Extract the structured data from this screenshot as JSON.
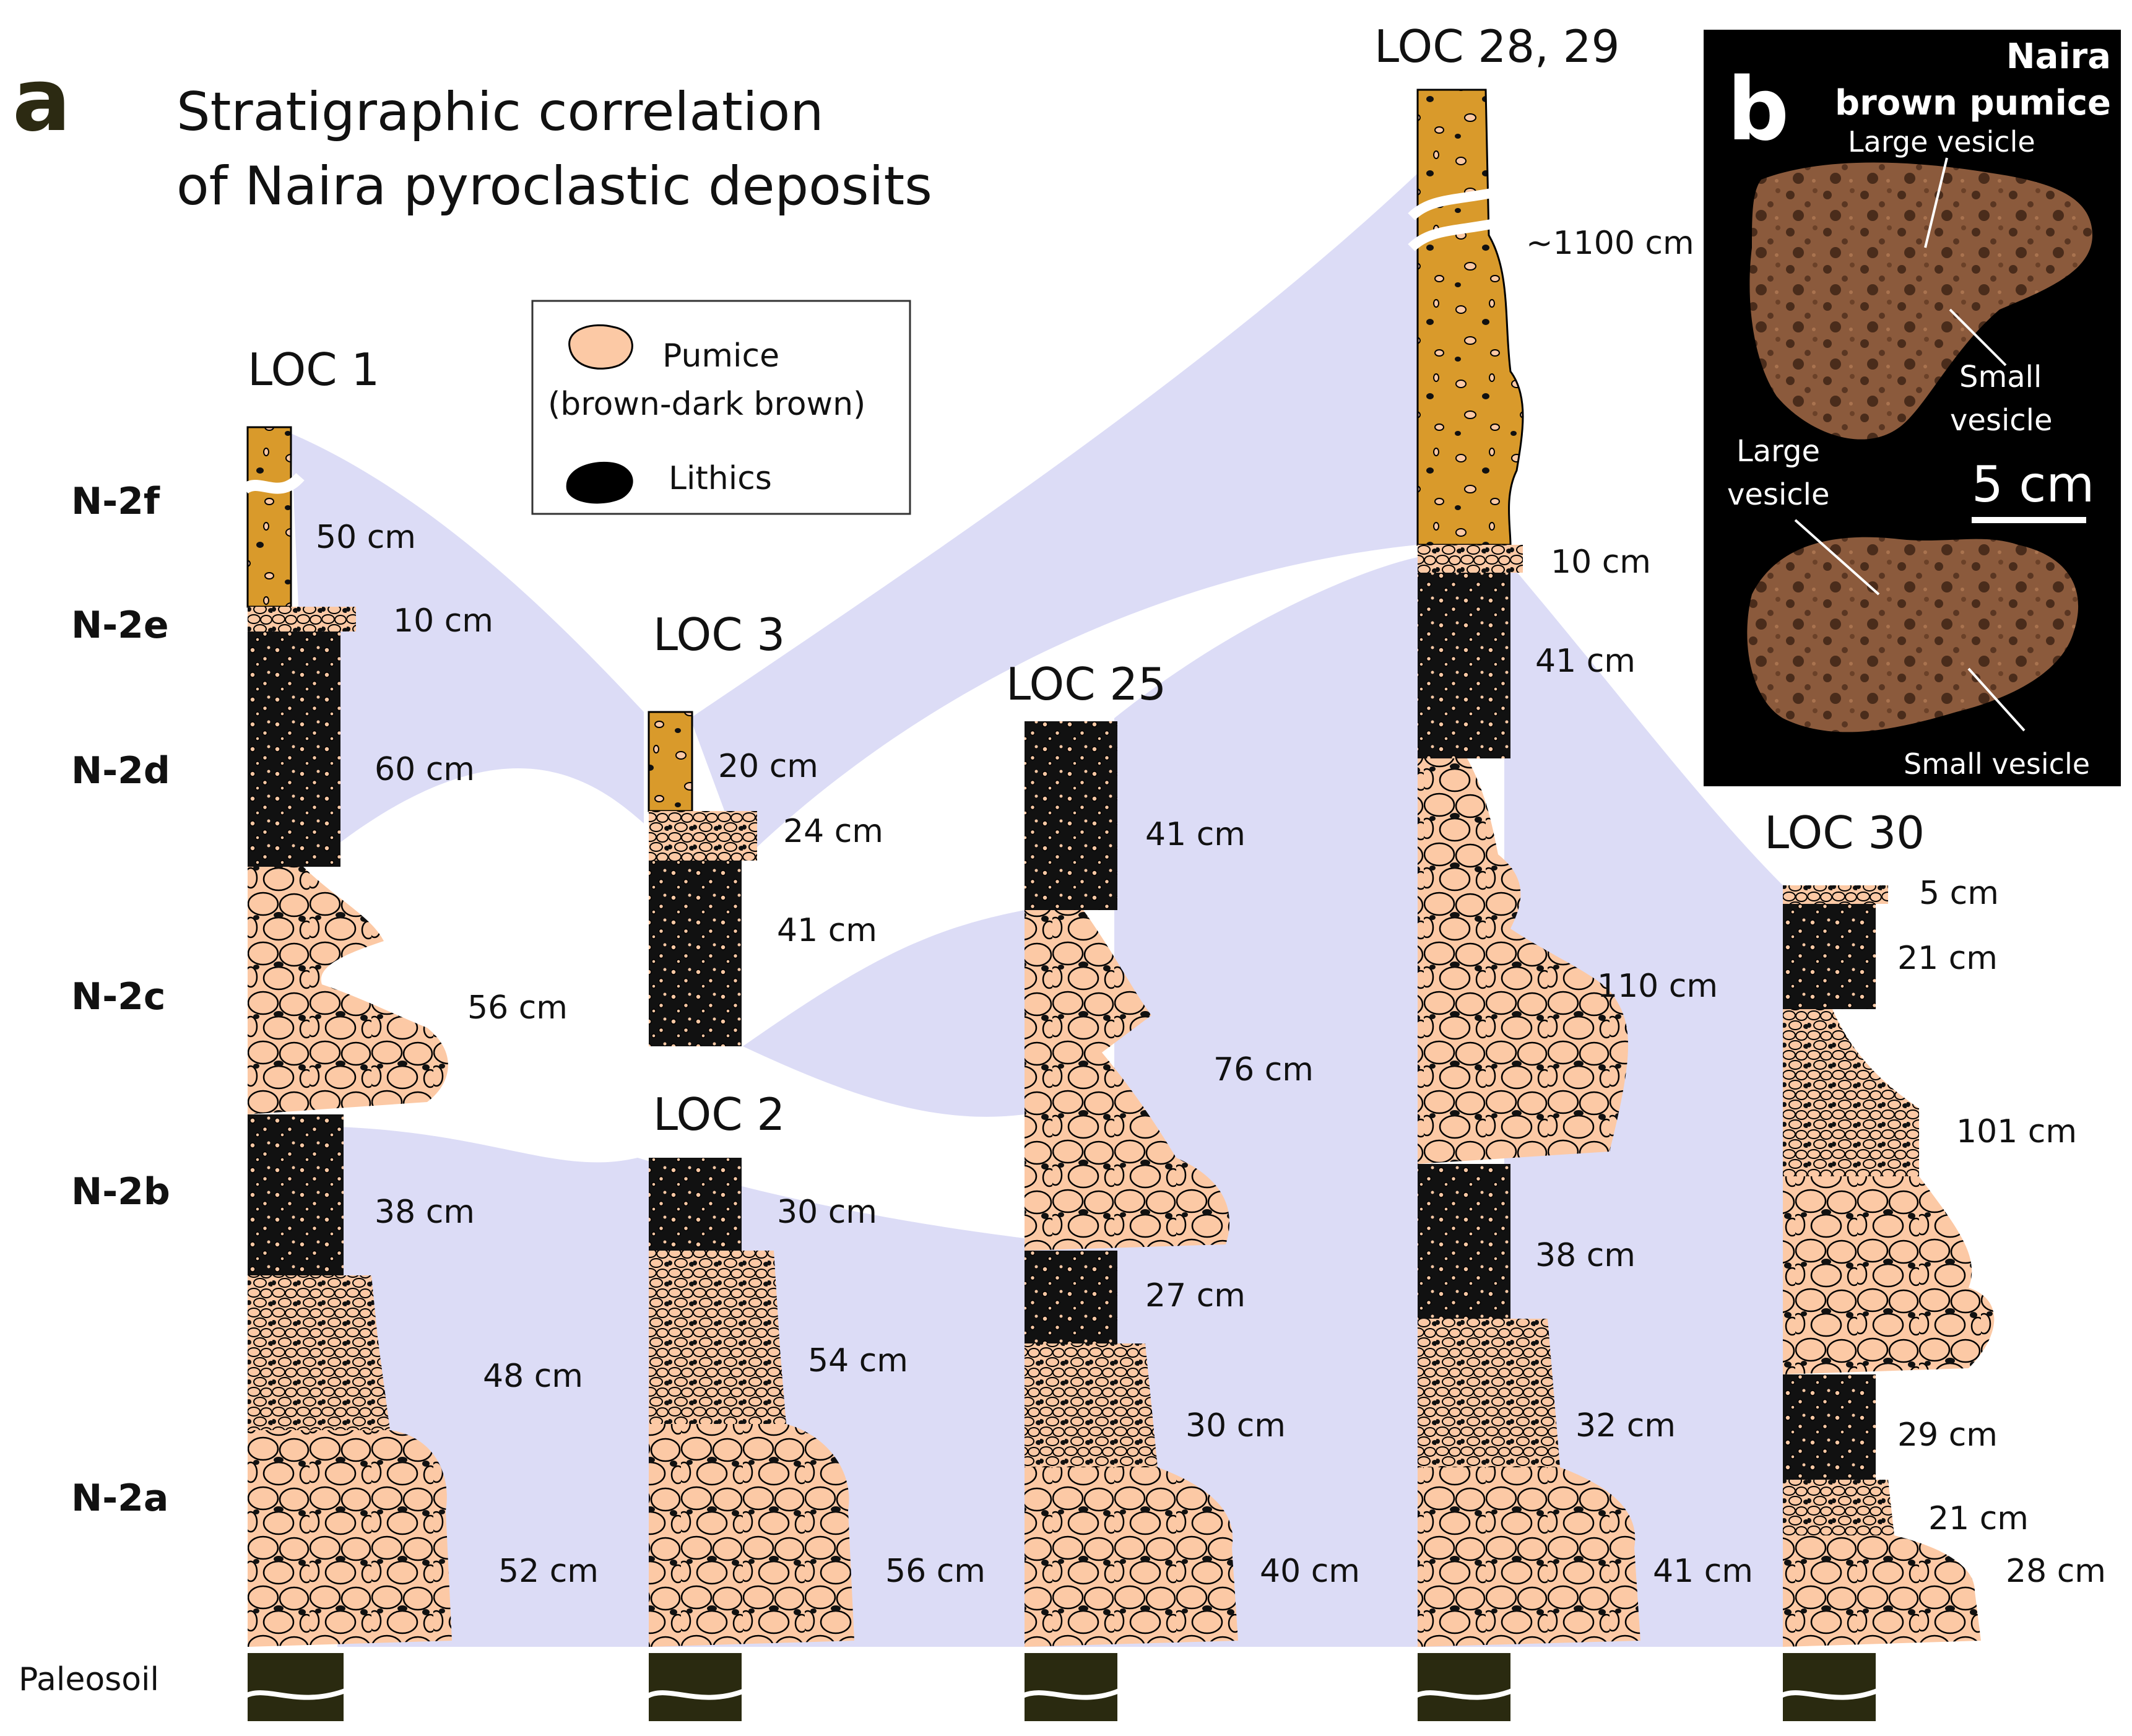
{
  "panel_a": {
    "letter": "a",
    "title_line1": "Stratigraphic correlation",
    "title_line2": "of Naira pyroclastic deposits"
  },
  "legend": {
    "pumice_label": "Pumice",
    "pumice_sub": "(brown-dark brown)",
    "lithics_label": "Lithics"
  },
  "units": [
    "N-2f",
    "N-2e",
    "N-2d",
    "N-2c",
    "N-2b",
    "N-2a"
  ],
  "paleosoil": "Paleosoil",
  "locations": {
    "loc1": {
      "name": "LOC 1",
      "thicknesses": [
        "50 cm",
        "10 cm",
        "60 cm",
        "56 cm",
        "38 cm",
        "48 cm",
        "52 cm"
      ]
    },
    "loc3": {
      "name": "LOC 3",
      "thicknesses": [
        "20 cm",
        "24 cm",
        "41 cm"
      ]
    },
    "loc2": {
      "name": "LOC 2",
      "thicknesses": [
        "30 cm",
        "54 cm",
        "56 cm"
      ]
    },
    "loc25": {
      "name": "LOC 25",
      "thicknesses": [
        "41 cm",
        "76 cm",
        "27 cm",
        "30 cm",
        "40 cm"
      ]
    },
    "loc2829": {
      "name": "LOC 28, 29",
      "thicknesses": [
        "~1100 cm",
        "10 cm",
        "41 cm",
        "110 cm",
        "38 cm",
        "32 cm",
        "41 cm"
      ]
    },
    "loc30": {
      "name": "LOC 30",
      "thicknesses": [
        "5 cm",
        "21 cm",
        "101 cm",
        "29 cm",
        "21 cm",
        "28 cm"
      ]
    }
  },
  "panel_b": {
    "letter": "b",
    "title_line1": "Naira",
    "title_line2": "brown pumice",
    "large_vesicle_1": "Large vesicle",
    "small_vesicle_1a": "Small",
    "small_vesicle_1b": "vesicle",
    "large_vesicle_2a": "Large",
    "large_vesicle_2b": "vesicle",
    "scale": "5 cm",
    "small_vesicle_2": "Small vesicle"
  },
  "colors": {
    "correlation": "#dcdcf6",
    "pumice": "#fcc9a5",
    "tephra_orange": "#d99a2b",
    "lithic": "#000000",
    "paleosoil": "#2a2a10",
    "title_olive": "#2c2a12"
  }
}
